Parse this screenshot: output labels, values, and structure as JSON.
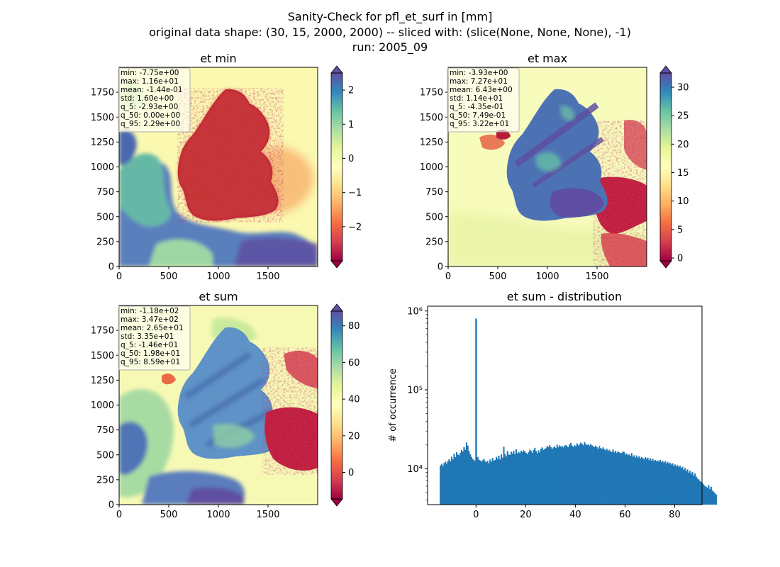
{
  "figure": {
    "title_lines": [
      "Sanity-Check for pfl_et_surf in [mm]",
      "original data shape: (30, 15, 2000, 2000) -- sliced with: (slice(None, None, None), -1)",
      "run: 2005_09"
    ]
  },
  "colors": {
    "spectral": [
      "#9e0142",
      "#d53e4f",
      "#f46d43",
      "#fdae61",
      "#fee08b",
      "#ffffbf",
      "#e6f598",
      "#abdda4",
      "#66c2a5",
      "#3288bd",
      "#5e4fa2"
    ],
    "germany_min": "#b2182b",
    "germany_max": "#4a66b0",
    "germany_sum": "#5b8fc4",
    "background_map": "#f4f9b8",
    "hist_bar": "#1f77b4"
  },
  "chart_data": [
    {
      "type": "heatmap",
      "title": "et min",
      "xticks": [
        "0",
        "500",
        "1000",
        "1500"
      ],
      "yticks": [
        "0",
        "250",
        "500",
        "750",
        "1000",
        "1250",
        "1500",
        "1750"
      ],
      "xlim": [
        0,
        2000
      ],
      "ylim": [
        0,
        2000
      ],
      "colorbar": {
        "min": -3,
        "max": 2.5,
        "ticks": [
          "2",
          "1",
          "0",
          "−1",
          "−2"
        ],
        "tick_values": [
          2,
          1,
          0,
          -1,
          -2
        ],
        "extend": "both"
      },
      "stats": [
        "min: -7.75e+00",
        "max: 1.16e+01",
        "mean: -1.44e-01",
        "std: 1.60e+00",
        "q_5: -2.93e+00",
        "q_50: 0.00e+00",
        "q_95: 2.29e+00"
      ]
    },
    {
      "type": "heatmap",
      "title": "et max",
      "xticks": [
        "0",
        "500",
        "1000",
        "1500"
      ],
      "yticks": [
        "0",
        "250",
        "500",
        "750",
        "1000",
        "1250",
        "1500",
        "1750"
      ],
      "xlim": [
        0,
        2000
      ],
      "ylim": [
        0,
        2000
      ],
      "colorbar": {
        "min": -0.5,
        "max": 32.5,
        "ticks": [
          "30",
          "25",
          "20",
          "15",
          "10",
          "5",
          "0"
        ],
        "tick_values": [
          30,
          25,
          20,
          15,
          10,
          5,
          0
        ],
        "extend": "both"
      },
      "stats": [
        "min: -3.93e+00",
        "max: 7.27e+01",
        "mean: 6.43e+00",
        "std: 1.14e+01",
        "q_5: -4.35e-01",
        "q_50: 7.49e-01",
        "q_95: 3.22e+01"
      ]
    },
    {
      "type": "heatmap",
      "title": "et sum",
      "xticks": [
        "0",
        "500",
        "1000",
        "1500"
      ],
      "yticks": [
        "0",
        "250",
        "500",
        "750",
        "1000",
        "1250",
        "1500",
        "1750"
      ],
      "xlim": [
        0,
        2000
      ],
      "ylim": [
        0,
        2000
      ],
      "colorbar": {
        "min": -14.5,
        "max": 88,
        "ticks": [
          "80",
          "60",
          "40",
          "20",
          "0"
        ],
        "tick_values": [
          80,
          60,
          40,
          20,
          0
        ],
        "extend": "both"
      },
      "stats": [
        "min: -1.18e+02",
        "max: 3.47e+02",
        "mean: 2.65e+01",
        "std: 3.35e+01",
        "q_5: -1.46e+01",
        "q_50: 1.98e+01",
        "q_95: 8.59e+01"
      ]
    },
    {
      "type": "bar",
      "title": "et sum - distribution",
      "ylabel": "# of occurrence",
      "yscale": "log",
      "xlim": [
        -19.5,
        91
      ],
      "ylim": [
        3500,
        1150000
      ],
      "xticks": [
        "0",
        "20",
        "40",
        "60",
        "80"
      ],
      "xtick_values": [
        0,
        20,
        40,
        60,
        80
      ],
      "yticks": [
        "10⁴",
        "10⁵",
        "10⁶"
      ],
      "ytick_values": [
        10000,
        100000,
        1000000
      ],
      "bins": {
        "start": -14.6,
        "width": 0.5
      },
      "spike": {
        "x": 0,
        "value": 800000
      },
      "values": [
        11000,
        11500,
        10800,
        11800,
        12300,
        11600,
        12500,
        13200,
        12400,
        14200,
        13100,
        15500,
        14000,
        16200,
        15100,
        14800,
        15900,
        17200,
        16500,
        18800,
        17400,
        21500,
        19600,
        16800,
        15200,
        14100,
        13300,
        12800,
        12500,
        13600,
        14100,
        13000,
        12700,
        12300,
        12800,
        13300,
        12400,
        12100,
        12600,
        11700,
        13100,
        12300,
        13700,
        12600,
        12900,
        14100,
        13400,
        14600,
        13100,
        15200,
        13800,
        18900,
        15400,
        14300,
        16700,
        15100,
        14900,
        16400,
        15600,
        16900,
        15300,
        17600,
        15700,
        16300,
        15800,
        16900,
        16300,
        17100,
        16500,
        15800,
        15300,
        16200,
        17400,
        16800,
        15900,
        17200,
        18400,
        16800,
        15700,
        17100,
        16100,
        17900,
        18600,
        17300,
        17800,
        18200,
        19400,
        18800,
        19900,
        18700,
        17900,
        18600,
        19200,
        18300,
        20100,
        18700,
        19800,
        18900,
        19400,
        18600,
        19600,
        19900,
        19100,
        18900,
        20400,
        21200,
        19600,
        18900,
        19800,
        19300,
        20900,
        19700,
        20300,
        21400,
        20600,
        19800,
        21800,
        20700,
        19900,
        20300,
        19600,
        20500,
        19800,
        19200,
        18800,
        19600,
        18700,
        17900,
        19400,
        18300,
        17800,
        18600,
        17600,
        17100,
        17900,
        16800,
        17400,
        16500,
        16300,
        17500,
        16100,
        16800,
        15900,
        16500,
        16200,
        15700,
        15900,
        16500,
        16300,
        15100,
        15600,
        14800,
        15300,
        14600,
        15800,
        14200,
        14800,
        13900,
        14700,
        13800,
        14400,
        13500,
        14100,
        13600,
        13200,
        14000,
        13300,
        13800,
        12800,
        13600,
        12700,
        13300,
        12500,
        12900,
        12400,
        12700,
        12300,
        12900,
        12200,
        12500,
        11900,
        12500,
        11700,
        12200,
        11600,
        11900,
        11300,
        11700,
        10900,
        11300,
        10700,
        11100,
        10500,
        10900,
        10200,
        10600,
        9700,
        10200,
        9300,
        9800,
        8900,
        9400,
        8600,
        9100,
        8200,
        8700,
        7900,
        7500,
        7300,
        7000,
        6800,
        6500,
        6300,
        6000,
        5900,
        5700,
        6200,
        5500,
        5900,
        5300,
        5100,
        4900,
        4700
      ]
    }
  ]
}
